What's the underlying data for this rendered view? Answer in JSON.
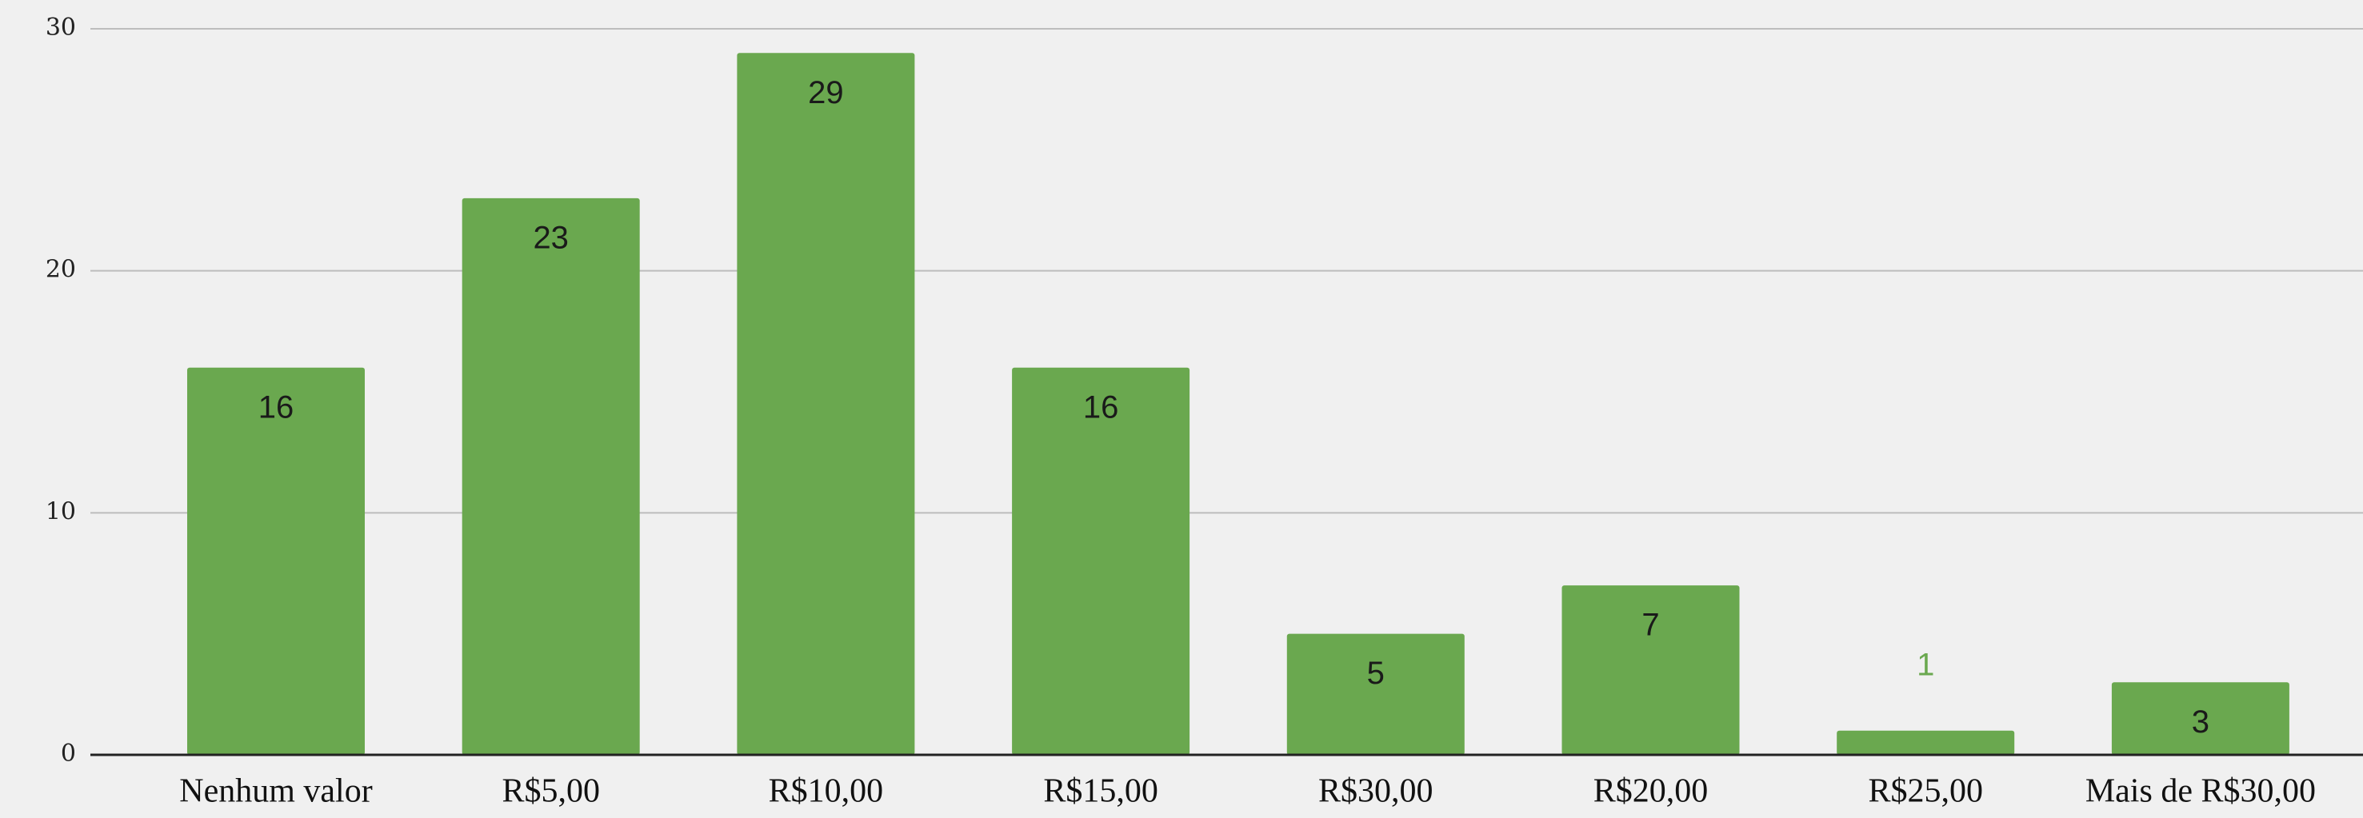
{
  "chart_data": {
    "type": "bar",
    "categories": [
      "Nenhum valor",
      "R$5,00",
      "R$10,00",
      "R$15,00",
      "R$30,00",
      "R$20,00",
      "R$25,00",
      "Mais de R$30,00"
    ],
    "values": [
      16,
      23,
      29,
      16,
      5,
      7,
      1,
      3
    ],
    "color": "#6aa84f",
    "ylim": [
      0,
      30
    ],
    "yticks": [
      0,
      10,
      20,
      30
    ],
    "grid": true
  }
}
